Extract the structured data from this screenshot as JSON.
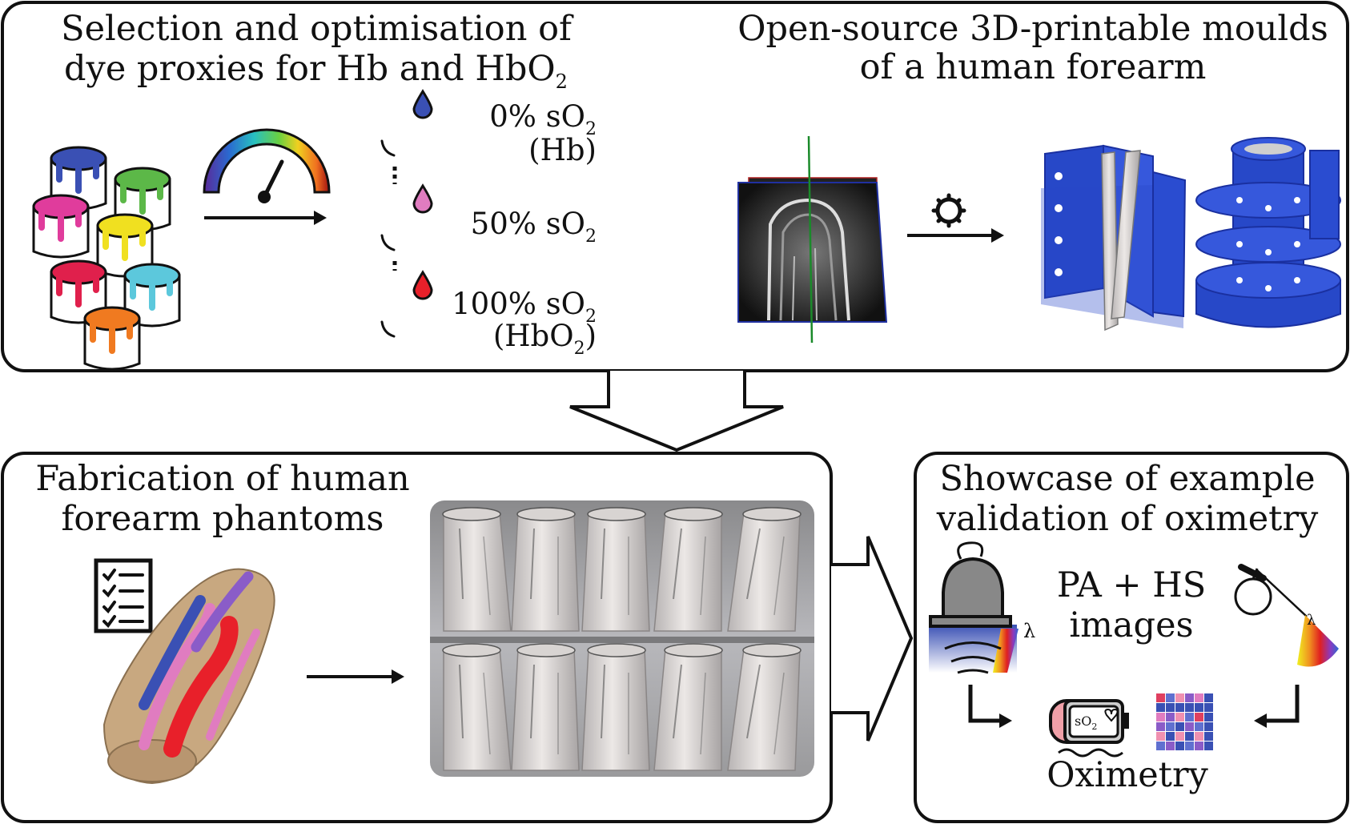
{
  "panels": {
    "dyes": {
      "title_line1": "Selection and optimisation of",
      "title_line2": "dye proxies for Hb and HbO",
      "title_sub": "2",
      "drops": [
        {
          "pct": "0% sO",
          "sub": "2",
          "note": "(Hb)",
          "note_sub": "",
          "note_end": "",
          "color": "#3a50b4"
        },
        {
          "pct": "50% sO",
          "sub": "2",
          "note": "",
          "note_sub": "",
          "note_end": "",
          "color": "#e07cc0"
        },
        {
          "pct": "100% sO",
          "sub": "2",
          "note": "(HbO",
          "note_sub": "2",
          "note_end": ")",
          "color": "#e8202a"
        }
      ],
      "paint_colors": [
        "#3a50b4",
        "#5cb848",
        "#e03c9c",
        "#f0e020",
        "#e0204c",
        "#5cc8dc",
        "#f07a20"
      ]
    },
    "moulds": {
      "title_line1": "Open-source 3D-printable moulds",
      "title_line2": "of a human forearm",
      "mould_color": "#2748c8"
    },
    "fabrication": {
      "title_line1": "Fabrication of human",
      "title_line2": "forearm phantoms"
    },
    "showcase": {
      "title_line1": "Showcase of example",
      "title_line2": "validation of oximetry",
      "images_line1": "PA + HS",
      "images_line2": "images",
      "result_label": "Oximetry",
      "lambda": "λ",
      "screen_text": "sO",
      "screen_sub": "2"
    }
  },
  "colors": {
    "line": "#111111",
    "vein": "#3a50b4",
    "artery": "#e8202a",
    "mixed": "#e07cc0",
    "purple": "#8a5cc8",
    "skin": "#c8a880"
  }
}
